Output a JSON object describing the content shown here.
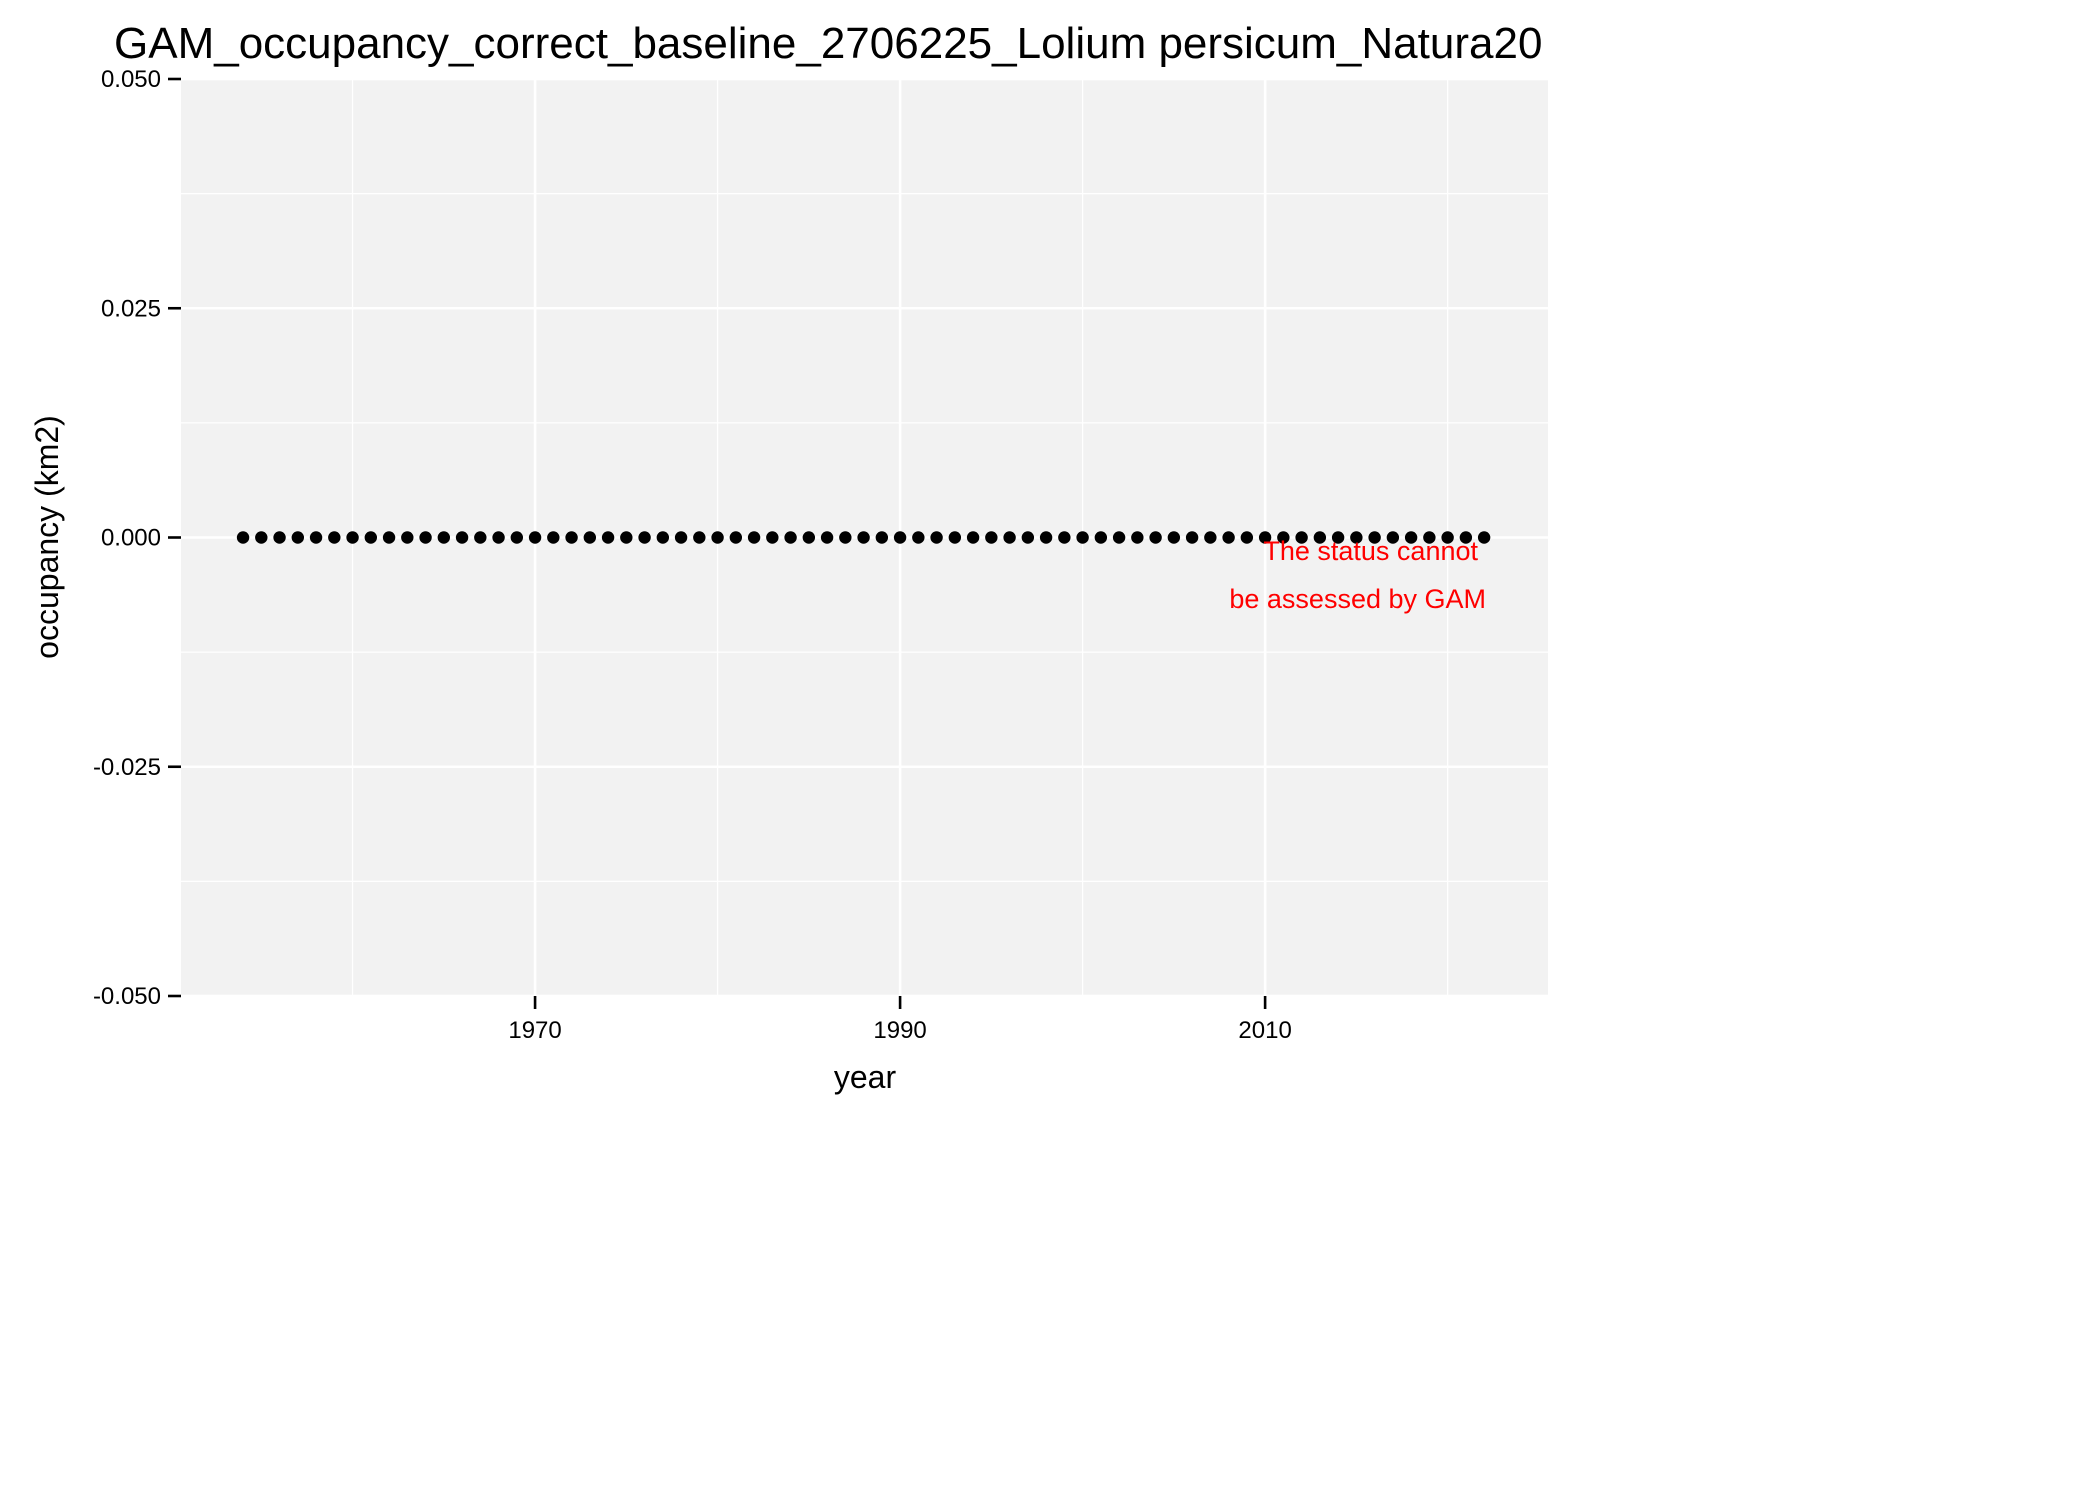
{
  "chart_data": {
    "type": "scatter",
    "title": "GAM_occupancy_correct_baseline_2706225_Lolium persicum_Natura20",
    "xlabel": "year",
    "ylabel": "occupancy (km2)",
    "xlim": [
      1950.6,
      2025.5
    ],
    "ylim": [
      -0.05,
      0.05
    ],
    "x_ticks": [
      1970,
      1990,
      2010
    ],
    "x_tick_labels": [
      "1970",
      "1990",
      "2010"
    ],
    "y_ticks": [
      -0.05,
      -0.025,
      0.0,
      0.025,
      0.05
    ],
    "y_tick_labels": [
      "-0.050",
      "-0.025",
      "0.000",
      "0.025",
      "0.050"
    ],
    "grid": true,
    "panel_background": "#f2f2f2",
    "grid_color": "#ffffff",
    "point_color": "#000000",
    "x_start": 1954,
    "x_end": 2022,
    "y_value": 0,
    "annotation": {
      "lines": [
        "The status cannot",
        "be assessed by GAM"
      ],
      "color": "#ff0000"
    }
  }
}
